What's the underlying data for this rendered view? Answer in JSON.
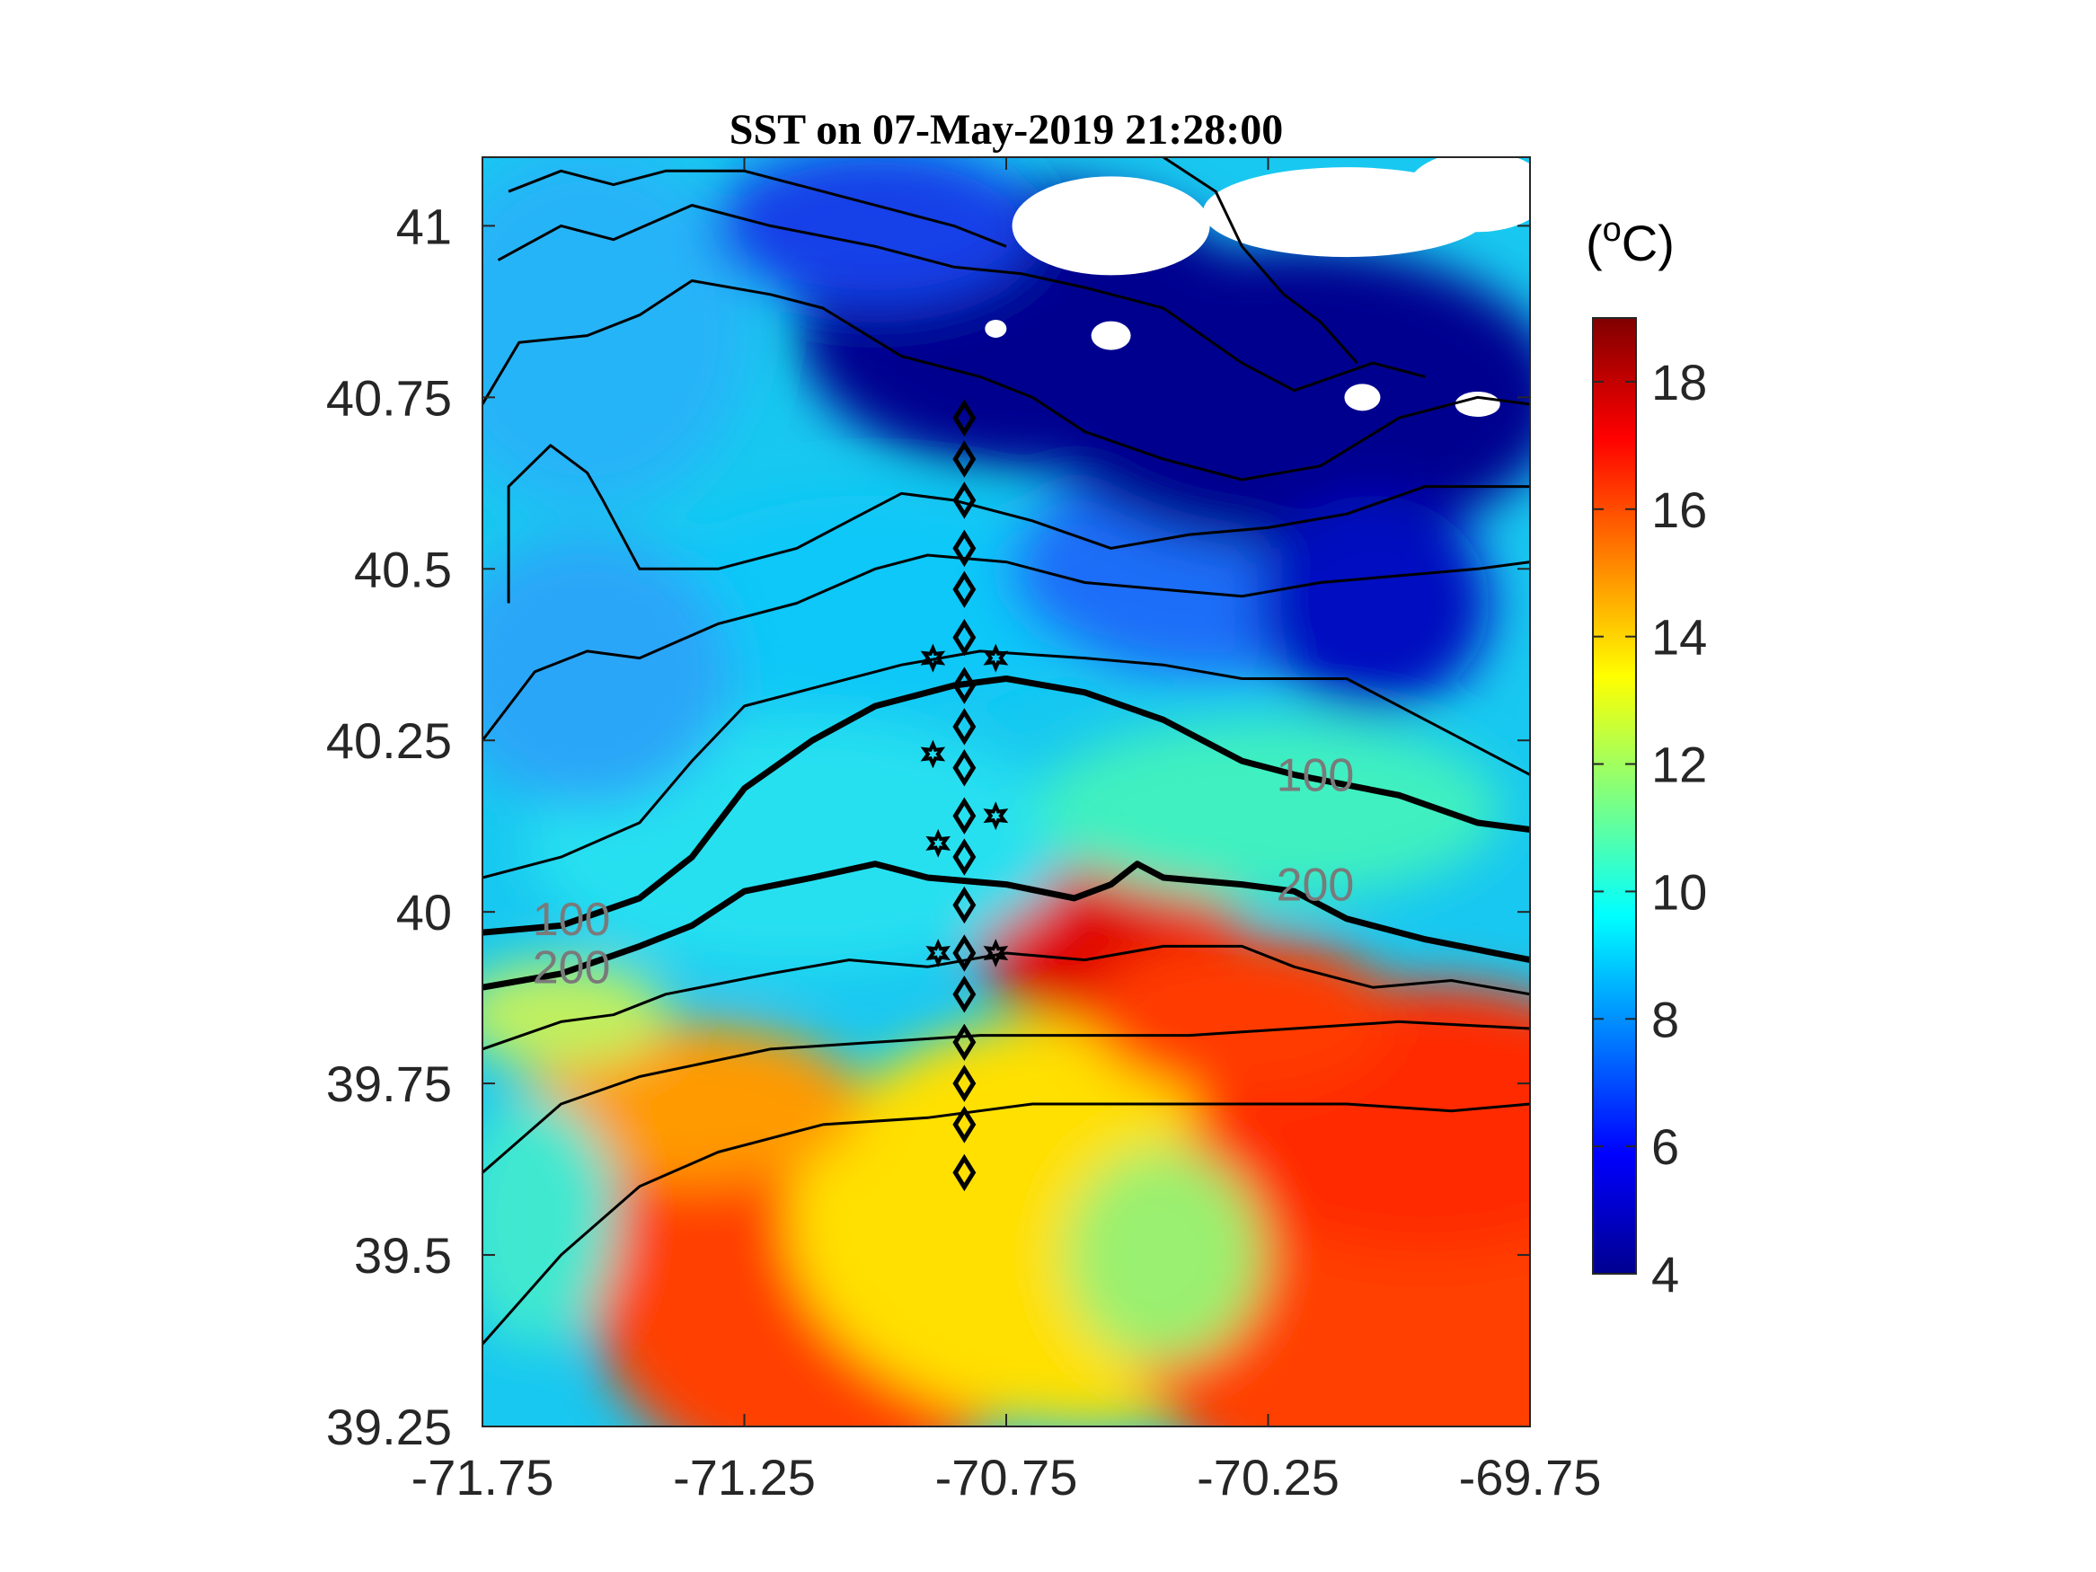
{
  "chart_data": {
    "type": "heatmap",
    "title": "SST on 07-May-2019 21:28:00",
    "xlabel": "",
    "ylabel": "",
    "xlim": [
      -71.75,
      -69.75
    ],
    "ylim": [
      39.25,
      41.1
    ],
    "x_ticks": [
      "-71.75",
      "-71.25",
      "-70.75",
      "-70.25",
      "-69.75"
    ],
    "y_ticks": [
      "39.25",
      "39.5",
      "39.75",
      "40",
      "40.25",
      "40.5",
      "40.75",
      "41"
    ],
    "colorbar": {
      "label": "(oC)",
      "label_base": "(",
      "label_sup": "o",
      "label_unit": "C)",
      "range": [
        4,
        19
      ],
      "ticks": [
        "4",
        "6",
        "8",
        "10",
        "12",
        "14",
        "16",
        "18"
      ],
      "colormap": "jet"
    },
    "colors": {
      "cold": "#00008f",
      "cool": "#0080ff",
      "mid": "#00e0e0",
      "warm": "#ffe000",
      "hot": "#ff4000",
      "max": "#800000"
    },
    "isobaths": [
      {
        "depth": "100",
        "label": "100",
        "points": [
          [
            -71.75,
            39.97
          ],
          [
            -71.6,
            39.98
          ],
          [
            -71.45,
            40.02
          ],
          [
            -71.35,
            40.08
          ],
          [
            -71.25,
            40.18
          ],
          [
            -71.12,
            40.25
          ],
          [
            -71.0,
            40.3
          ],
          [
            -70.85,
            40.33
          ],
          [
            -70.75,
            40.34
          ],
          [
            -70.6,
            40.32
          ],
          [
            -70.45,
            40.28
          ],
          [
            -70.3,
            40.22
          ],
          [
            -70.2,
            40.2
          ],
          [
            -70.0,
            40.17
          ],
          [
            -69.85,
            40.13
          ],
          [
            -69.75,
            40.12
          ]
        ]
      },
      {
        "depth": "200",
        "label": "200",
        "points": [
          [
            -71.75,
            39.89
          ],
          [
            -71.6,
            39.91
          ],
          [
            -71.45,
            39.95
          ],
          [
            -71.35,
            39.98
          ],
          [
            -71.25,
            40.03
          ],
          [
            -71.12,
            40.05
          ],
          [
            -71.0,
            40.07
          ],
          [
            -70.9,
            40.05
          ],
          [
            -70.75,
            40.04
          ],
          [
            -70.62,
            40.02
          ],
          [
            -70.55,
            40.04
          ],
          [
            -70.5,
            40.07
          ],
          [
            -70.45,
            40.05
          ],
          [
            -70.3,
            40.04
          ],
          [
            -70.2,
            40.03
          ],
          [
            -70.1,
            39.99
          ],
          [
            -69.95,
            39.96
          ],
          [
            -69.75,
            39.93
          ]
        ]
      }
    ],
    "stations_diamond": [
      [
        -70.83,
        40.72
      ],
      [
        -70.83,
        40.66
      ],
      [
        -70.83,
        40.6
      ],
      [
        -70.83,
        40.53
      ],
      [
        -70.83,
        40.47
      ],
      [
        -70.83,
        40.4
      ],
      [
        -70.83,
        40.33
      ],
      [
        -70.83,
        40.27
      ],
      [
        -70.83,
        40.21
      ],
      [
        -70.83,
        40.14
      ],
      [
        -70.83,
        40.08
      ],
      [
        -70.83,
        40.01
      ],
      [
        -70.83,
        39.94
      ],
      [
        -70.83,
        39.88
      ],
      [
        -70.83,
        39.81
      ],
      [
        -70.83,
        39.75
      ],
      [
        -70.83,
        39.69
      ],
      [
        -70.83,
        39.62
      ]
    ],
    "stations_star": [
      [
        -70.89,
        40.37
      ],
      [
        -70.77,
        40.37
      ],
      [
        -70.89,
        40.23
      ],
      [
        -70.77,
        40.14
      ],
      [
        -70.88,
        40.1
      ],
      [
        -70.88,
        39.94
      ],
      [
        -70.77,
        39.94
      ]
    ]
  }
}
